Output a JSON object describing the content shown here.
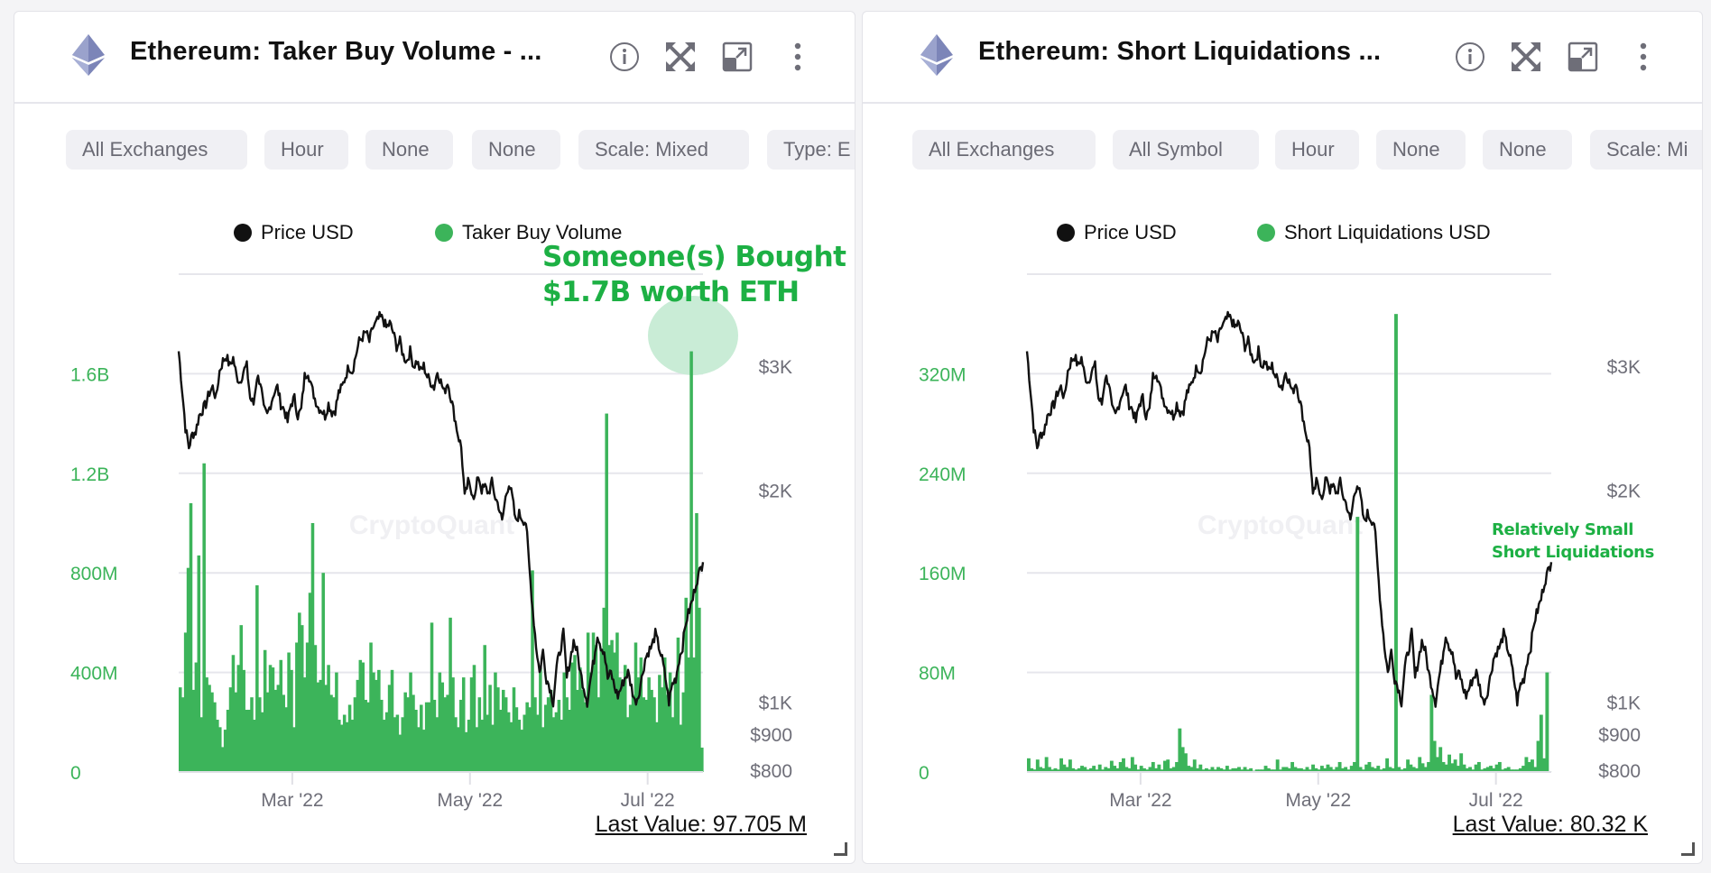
{
  "colors": {
    "accent_green": "#3cb45a",
    "price_line": "#111111",
    "annotation_green": "#1db044",
    "highlight_circle": "#c9ecd6",
    "chip_bg": "#f0f0f4",
    "icon_grey": "#6e6e78",
    "eth_icon": "#627eea"
  },
  "header_icons": [
    "info-icon",
    "fullscreen-icon",
    "popout-icon",
    "more-vert-icon"
  ],
  "panels": [
    {
      "title": "Ethereum: Taker Buy Volume - ...",
      "chips": [
        "All Exchanges",
        "Hour",
        "None",
        "None",
        "Scale: Mixed",
        "Type: E"
      ],
      "legend": [
        "Price USD",
        "Taker Buy Volume"
      ],
      "watermark": "CryptoQuant",
      "last_value": "Last Value: 97.705 M",
      "annotation": [
        "Someone(s) Bought",
        "$1.7B worth ETH"
      ]
    },
    {
      "title": "Ethereum: Short Liquidations ...",
      "chips": [
        "All Exchanges",
        "All Symbol",
        "Hour",
        "None",
        "None",
        "Scale: Mi"
      ],
      "legend": [
        "Price USD",
        "Short Liquidations USD"
      ],
      "watermark": "CryptoQuant",
      "last_value": "Last Value: 80.32 K",
      "annotation": [
        "Relatively Small",
        "Short Liquidations"
      ]
    }
  ],
  "chart_data": [
    {
      "type": "bar",
      "title": "Ethereum: Taker Buy Volume",
      "x_range": [
        "2022-01-21",
        "2022-07-20"
      ],
      "x_ticks": [
        "Mar '22",
        "May '22",
        "Jul '22"
      ],
      "x_tick_dates": [
        "2022-03-01",
        "2022-05-01",
        "2022-07-01"
      ],
      "y_left_ticks": [
        "0",
        "400M",
        "800M",
        "1.2B",
        "1.6B"
      ],
      "y_left_values": [
        0,
        400000000,
        800000000,
        1200000000,
        1600000000
      ],
      "ylim_left": [
        0,
        2000000000
      ],
      "y_right_ticks": [
        "$800",
        "$900",
        "$1K",
        "$2K",
        "$3K"
      ],
      "y_right_values": [
        800,
        900,
        1000,
        2000,
        3000
      ],
      "y_right_scale": "log",
      "legend_position": "top-center",
      "series": [
        {
          "name": "Taker Buy Volume",
          "kind": "bar",
          "unit": "USD",
          "values_millions": [
            340,
            300,
            560,
            820,
            1080,
            330,
            440,
            870,
            220,
            1240,
            380,
            350,
            320,
            280,
            210,
            180,
            100,
            170,
            250,
            340,
            470,
            320,
            430,
            590,
            410,
            250,
            250,
            300,
            210,
            750,
            300,
            240,
            490,
            320,
            430,
            420,
            330,
            350,
            450,
            310,
            260,
            480,
            410,
            180,
            520,
            640,
            590,
            380,
            520,
            720,
            1000,
            510,
            360,
            370,
            800,
            350,
            430,
            310,
            300,
            400,
            210,
            190,
            230,
            200,
            270,
            210,
            300,
            370,
            450,
            440,
            290,
            280,
            520,
            400,
            370,
            410,
            290,
            210,
            240,
            350,
            410,
            220,
            230,
            150,
            220,
            320,
            300,
            400,
            310,
            250,
            180,
            270,
            170,
            280,
            280,
            600,
            290,
            220,
            400,
            360,
            300,
            310,
            620,
            380,
            220,
            180,
            290,
            380,
            160,
            210,
            380,
            430,
            180,
            300,
            210,
            510,
            230,
            350,
            190,
            400,
            340,
            250,
            330,
            300,
            240,
            200,
            340,
            260,
            210,
            170,
            230,
            280,
            260,
            810,
            300,
            230,
            420,
            180,
            270,
            300,
            330,
            220,
            240,
            290,
            210,
            400,
            300,
            250,
            440,
            470,
            330,
            420,
            330,
            280,
            560,
            400,
            560,
            510,
            300,
            490,
            660,
            1440,
            510,
            530,
            480,
            560,
            380,
            350,
            430,
            220,
            270,
            310,
            520,
            380,
            460,
            300,
            290,
            380,
            330,
            300,
            200,
            390,
            340,
            460,
            310,
            400,
            220,
            380,
            540,
            190,
            320,
            700,
            460,
            1690,
            460,
            1040,
            660,
            98
          ],
          "peak_value": 1700000000
        },
        {
          "name": "Price USD",
          "kind": "line",
          "unit": "USD",
          "values": [
            3150,
            2780,
            2450,
            2300,
            2400,
            2420,
            2550,
            2600,
            2650,
            2750,
            2800,
            2700,
            2950,
            3050,
            3100,
            3000,
            3080,
            2900,
            2850,
            2950,
            3000,
            2700,
            2650,
            2900,
            2850,
            2600,
            2550,
            2650,
            2750,
            2800,
            2650,
            2600,
            2500,
            2650,
            2700,
            2550,
            2600,
            2900,
            2950,
            2800,
            2700,
            2620,
            2600,
            2550,
            2650,
            2580,
            2600,
            2750,
            2800,
            2900,
            3000,
            2950,
            3100,
            3250,
            3300,
            3350,
            3250,
            3400,
            3450,
            3520,
            3500,
            3400,
            3450,
            3350,
            3200,
            3250,
            3100,
            3050,
            3150,
            3000,
            3050,
            2950,
            3000,
            2900,
            2850,
            2800,
            2950,
            2850,
            2750,
            2850,
            2700,
            2550,
            2400,
            2300,
            1950,
            2050,
            2000,
            1950,
            2100,
            2000,
            2020,
            1980,
            2050,
            1950,
            1900,
            1800,
            1950,
            2050,
            1950,
            1800,
            1850,
            1820,
            1800,
            1550,
            1350,
            1200,
            1100,
            1180,
            1080,
            1050,
            1000,
            1120,
            1180,
            1250,
            1080,
            1150,
            1220,
            1180,
            1100,
            1050,
            1000,
            1080,
            1150,
            1250,
            1200,
            1180,
            1080,
            1100,
            1050,
            1020,
            1050,
            1080,
            1100,
            1050,
            1000,
            1020,
            1080,
            1150,
            1180,
            1200,
            1250,
            1200,
            1150,
            1080,
            1000,
            1060,
            1080,
            1150,
            1200,
            1300,
            1350,
            1400,
            1480,
            1530,
            1580
          ]
        }
      ],
      "annotations": [
        "Someone(s) Bought",
        "$1.7B worth ETH"
      ]
    },
    {
      "type": "bar",
      "title": "Ethereum: Short Liquidations",
      "x_range": [
        "2022-01-21",
        "2022-07-20"
      ],
      "x_ticks": [
        "Mar '22",
        "May '22",
        "Jul '22"
      ],
      "x_tick_dates": [
        "2022-03-01",
        "2022-05-01",
        "2022-07-01"
      ],
      "y_left_ticks": [
        "0",
        "80M",
        "160M",
        "240M",
        "320M"
      ],
      "y_left_values": [
        0,
        80000000,
        160000000,
        240000000,
        320000000
      ],
      "ylim_left": [
        0,
        400000000
      ],
      "y_right_ticks": [
        "$800",
        "$900",
        "$1K",
        "$2K",
        "$3K"
      ],
      "y_right_values": [
        800,
        900,
        1000,
        2000,
        3000
      ],
      "y_right_scale": "log",
      "legend_position": "top-center",
      "series": [
        {
          "name": "Short Liquidations USD",
          "kind": "bar",
          "unit": "USD",
          "values_millions": [
            11,
            3,
            2,
            10,
            4,
            3,
            12,
            4,
            2,
            3,
            2,
            11,
            6,
            4,
            10,
            3,
            2,
            3,
            5,
            4,
            2,
            3,
            5,
            2,
            6,
            2,
            4,
            3,
            9,
            5,
            3,
            8,
            11,
            4,
            3,
            12,
            6,
            2,
            5,
            3,
            2,
            4,
            8,
            3,
            6,
            2,
            9,
            10,
            3,
            4,
            8,
            35,
            20,
            15,
            5,
            4,
            10,
            3,
            6,
            2,
            3,
            2,
            4,
            2,
            4,
            3,
            2,
            5,
            2,
            3,
            3,
            4,
            2,
            4,
            2,
            3,
            1,
            2,
            2,
            2,
            5,
            3,
            2,
            2,
            10,
            2,
            4,
            4,
            3,
            8,
            4,
            3,
            3,
            2,
            4,
            2,
            6,
            3,
            2,
            5,
            3,
            6,
            4,
            2,
            4,
            8,
            3,
            4,
            2,
            5,
            8,
            205,
            4,
            2,
            6,
            8,
            4,
            3,
            5,
            2,
            3,
            11,
            4,
            3,
            368,
            4,
            2,
            3,
            10,
            6,
            4,
            3,
            12,
            7,
            4,
            8,
            62,
            25,
            12,
            20,
            8,
            6,
            14,
            7,
            10,
            5,
            15,
            6,
            3,
            4,
            2,
            6,
            8,
            2,
            3,
            4,
            5,
            3,
            6,
            8,
            2,
            3,
            4,
            2,
            2,
            2,
            3,
            5,
            12,
            8,
            10,
            4,
            25,
            46,
            11,
            80,
            0.08
          ],
          "peak_value": 368000000
        },
        {
          "name": "Price USD",
          "kind": "line",
          "unit": "USD",
          "values": [
            3150,
            2780,
            2450,
            2300,
            2400,
            2420,
            2550,
            2600,
            2650,
            2750,
            2800,
            2700,
            2950,
            3050,
            3100,
            3000,
            3080,
            2900,
            2850,
            2950,
            3000,
            2700,
            2650,
            2900,
            2850,
            2600,
            2550,
            2650,
            2750,
            2800,
            2650,
            2600,
            2500,
            2650,
            2700,
            2550,
            2600,
            2900,
            2950,
            2800,
            2700,
            2620,
            2600,
            2550,
            2650,
            2580,
            2600,
            2750,
            2800,
            2900,
            3000,
            2950,
            3100,
            3250,
            3300,
            3350,
            3250,
            3400,
            3450,
            3520,
            3500,
            3400,
            3450,
            3350,
            3200,
            3250,
            3100,
            3050,
            3150,
            3000,
            3050,
            2950,
            3000,
            2900,
            2850,
            2800,
            2950,
            2850,
            2750,
            2850,
            2700,
            2550,
            2400,
            2300,
            1950,
            2050,
            2000,
            1950,
            2100,
            2000,
            2020,
            1980,
            2050,
            1950,
            1900,
            1800,
            1950,
            2050,
            1950,
            1800,
            1850,
            1820,
            1800,
            1550,
            1350,
            1200,
            1100,
            1180,
            1080,
            1050,
            1000,
            1120,
            1180,
            1250,
            1080,
            1150,
            1220,
            1180,
            1100,
            1050,
            1000,
            1080,
            1150,
            1250,
            1200,
            1180,
            1080,
            1100,
            1050,
            1020,
            1050,
            1080,
            1100,
            1050,
            1000,
            1020,
            1080,
            1150,
            1180,
            1200,
            1250,
            1200,
            1150,
            1080,
            1000,
            1060,
            1080,
            1150,
            1200,
            1300,
            1350,
            1400,
            1480,
            1530,
            1580
          ]
        }
      ],
      "annotations": [
        "Relatively Small",
        "Short Liquidations"
      ]
    }
  ]
}
